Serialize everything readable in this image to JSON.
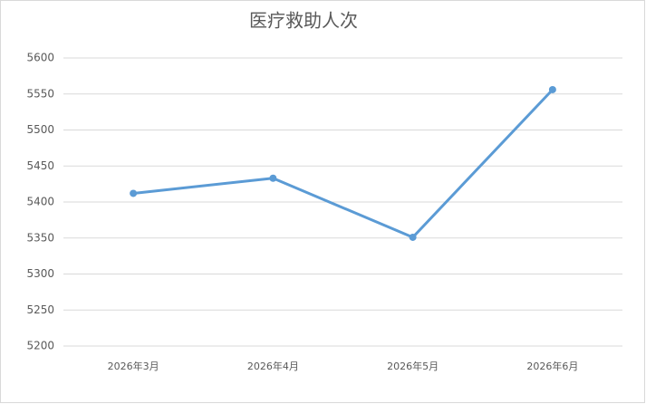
{
  "chart_data": {
    "type": "line",
    "title": "医疗救助人次",
    "categories": [
      "2026年3月",
      "2026年4月",
      "2026年5月",
      "2026年6月"
    ],
    "values": [
      5412,
      5433,
      5351,
      5556
    ],
    "color": "#5b9bd5",
    "ylim": [
      5200,
      5600
    ],
    "yticks": [
      5200,
      5250,
      5300,
      5350,
      5400,
      5450,
      5500,
      5550,
      5600
    ],
    "grid": true
  }
}
